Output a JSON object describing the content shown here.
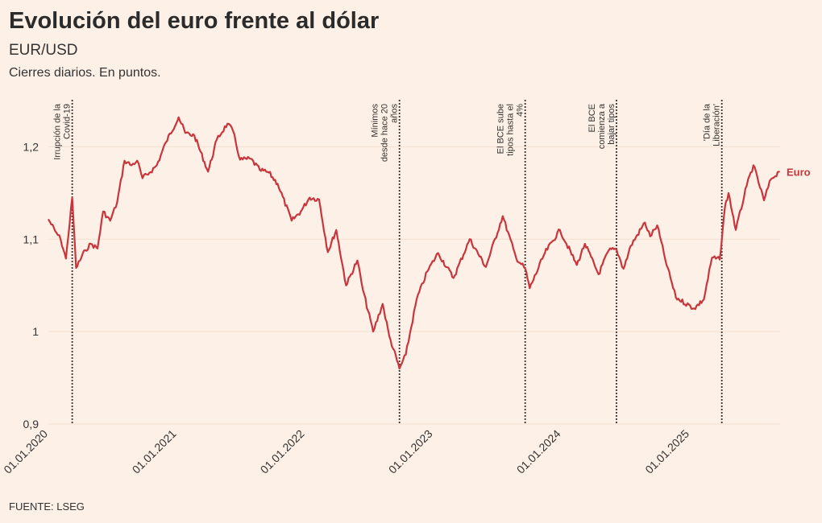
{
  "header": {
    "title": "Evolución del euro frente al dólar",
    "subtitle": "EUR/USD",
    "note": "Cierres diarios. En puntos."
  },
  "footer": {
    "source": "FUENTE: LSEG"
  },
  "colors": {
    "series": "#c8363d",
    "event_line": "#3a3030",
    "background": "#fdf0e6",
    "grid": "#f4e0d2"
  },
  "chart_data": {
    "type": "line",
    "ylim": [
      0.9,
      1.25
    ],
    "xlim": [
      "2020-01-01",
      "2025-09-15"
    ],
    "y_ticks": [
      0.9,
      1.0,
      1.1,
      1.2
    ],
    "y_tick_labels": [
      "0,9",
      "1",
      "1,1",
      "1,2"
    ],
    "x_ticks": [
      "2020-01-01",
      "2021-01-01",
      "2022-01-01",
      "2023-01-01",
      "2024-01-01",
      "2025-01-01"
    ],
    "x_tick_labels": [
      "01.01.2020",
      "01.01.2021",
      "01.01.2022",
      "01.01.2023",
      "01.01.2024",
      "01.01.2025"
    ],
    "grid": true,
    "events": [
      {
        "date": "2020-03-09",
        "lines": [
          "Irrupción de la",
          "Covid-19"
        ]
      },
      {
        "date": "2022-09-27",
        "lines": [
          "Mínimos",
          "desde hace 20",
          "años"
        ]
      },
      {
        "date": "2023-09-20",
        "lines": [
          "El BCE sube",
          "tipos hasta el",
          "4%"
        ]
      },
      {
        "date": "2024-06-06",
        "lines": [
          "El BCE",
          "comienza a",
          "bajar tipos"
        ]
      },
      {
        "date": "2025-04-02",
        "lines": [
          "'Día de la",
          "Liberación'"
        ]
      }
    ],
    "series": [
      {
        "name": "Euro",
        "points": [
          [
            "2020-01-02",
            1.121
          ],
          [
            "2020-01-20",
            1.109
          ],
          [
            "2020-02-05",
            1.1
          ],
          [
            "2020-02-20",
            1.079
          ],
          [
            "2020-03-09",
            1.145
          ],
          [
            "2020-03-20",
            1.069
          ],
          [
            "2020-04-15",
            1.088
          ],
          [
            "2020-05-01",
            1.095
          ],
          [
            "2020-05-20",
            1.09
          ],
          [
            "2020-06-05",
            1.13
          ],
          [
            "2020-06-25",
            1.12
          ],
          [
            "2020-07-15",
            1.14
          ],
          [
            "2020-08-05",
            1.185
          ],
          [
            "2020-08-25",
            1.18
          ],
          [
            "2020-09-10",
            1.185
          ],
          [
            "2020-09-25",
            1.166
          ],
          [
            "2020-10-15",
            1.172
          ],
          [
            "2020-11-05",
            1.18
          ],
          [
            "2020-12-01",
            1.205
          ],
          [
            "2021-01-06",
            1.232
          ],
          [
            "2021-01-25",
            1.215
          ],
          [
            "2021-02-20",
            1.212
          ],
          [
            "2021-03-31",
            1.173
          ],
          [
            "2021-04-25",
            1.208
          ],
          [
            "2021-05-25",
            1.225
          ],
          [
            "2021-06-10",
            1.217
          ],
          [
            "2021-06-30",
            1.186
          ],
          [
            "2021-07-30",
            1.187
          ],
          [
            "2021-08-25",
            1.175
          ],
          [
            "2021-09-20",
            1.172
          ],
          [
            "2021-10-15",
            1.16
          ],
          [
            "2021-11-24",
            1.12
          ],
          [
            "2021-12-20",
            1.13
          ],
          [
            "2022-01-14",
            1.145
          ],
          [
            "2022-02-10",
            1.143
          ],
          [
            "2022-03-07",
            1.086
          ],
          [
            "2022-03-31",
            1.11
          ],
          [
            "2022-04-28",
            1.05
          ],
          [
            "2022-05-30",
            1.077
          ],
          [
            "2022-06-15",
            1.045
          ],
          [
            "2022-07-14",
            1.0
          ],
          [
            "2022-08-10",
            1.03
          ],
          [
            "2022-08-29",
            0.995
          ],
          [
            "2022-09-27",
            0.96
          ],
          [
            "2022-10-15",
            0.975
          ],
          [
            "2022-11-15",
            1.035
          ],
          [
            "2022-12-15",
            1.065
          ],
          [
            "2023-01-15",
            1.085
          ],
          [
            "2023-02-28",
            1.058
          ],
          [
            "2023-04-15",
            1.1
          ],
          [
            "2023-05-31",
            1.07
          ],
          [
            "2023-07-18",
            1.125
          ],
          [
            "2023-08-25",
            1.08
          ],
          [
            "2023-09-20",
            1.068
          ],
          [
            "2023-10-03",
            1.047
          ],
          [
            "2023-11-15",
            1.085
          ],
          [
            "2023-12-28",
            1.11
          ],
          [
            "2024-02-14",
            1.072
          ],
          [
            "2024-03-08",
            1.095
          ],
          [
            "2024-04-16",
            1.062
          ],
          [
            "2024-05-15",
            1.088
          ],
          [
            "2024-06-06",
            1.089
          ],
          [
            "2024-06-26",
            1.068
          ],
          [
            "2024-07-17",
            1.093
          ],
          [
            "2024-08-26",
            1.118
          ],
          [
            "2024-09-10",
            1.103
          ],
          [
            "2024-09-30",
            1.115
          ],
          [
            "2024-10-23",
            1.078
          ],
          [
            "2024-11-22",
            1.037
          ],
          [
            "2025-01-13",
            1.025
          ],
          [
            "2025-02-10",
            1.035
          ],
          [
            "2025-03-05",
            1.08
          ],
          [
            "2025-03-27",
            1.078
          ],
          [
            "2025-04-11",
            1.135
          ],
          [
            "2025-04-21",
            1.15
          ],
          [
            "2025-05-12",
            1.11
          ],
          [
            "2025-06-12",
            1.158
          ],
          [
            "2025-07-01",
            1.18
          ],
          [
            "2025-07-31",
            1.142
          ],
          [
            "2025-08-20",
            1.165
          ],
          [
            "2025-09-12",
            1.173
          ]
        ]
      }
    ]
  }
}
